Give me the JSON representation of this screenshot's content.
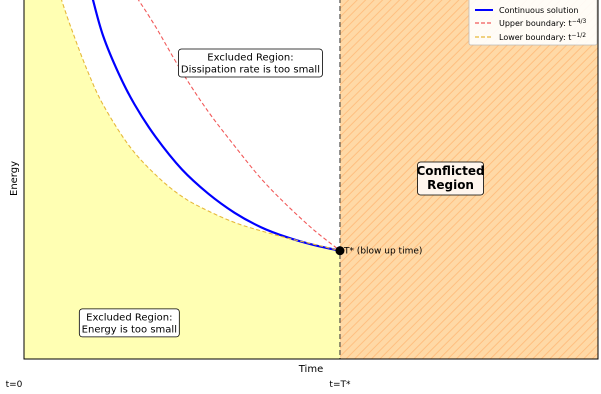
{
  "chart_data": {
    "type": "line",
    "title": "",
    "xlabel": "Time",
    "ylabel": "Energy",
    "x_ticks": [
      {
        "x": 0.0,
        "label": "t=0"
      },
      {
        "x": 0.6,
        "label": "t=T*"
      }
    ],
    "xlim": [
      0.0,
      1.09
    ],
    "ylim": [
      0.0,
      1.0
    ],
    "grid": false,
    "legend_position": "top-right",
    "series": [
      {
        "name": "Continuous solution",
        "color": "#0000ff",
        "style": "solid",
        "x": [
          0.13,
          0.15,
          0.18,
          0.21,
          0.25,
          0.3,
          0.35,
          0.4,
          0.45,
          0.5,
          0.55,
          0.6
        ],
        "y": [
          1.0,
          0.896,
          0.79,
          0.705,
          0.615,
          0.525,
          0.458,
          0.405,
          0.365,
          0.337,
          0.316,
          0.3
        ]
      },
      {
        "name": "Upper boundary: t^{-4/3}",
        "color": "#f15a5a",
        "style": "dashed",
        "x": [
          0.215,
          0.25,
          0.3,
          0.35,
          0.4,
          0.45,
          0.5,
          0.55,
          0.6
        ],
        "y": [
          1.0,
          0.92,
          0.795,
          0.685,
          0.59,
          0.5,
          0.425,
          0.358,
          0.3
        ]
      },
      {
        "name": "Lower boundary: t^{-1/2}",
        "color": "#e6b83a",
        "style": "dashed",
        "x": [
          0.07,
          0.09,
          0.12,
          0.15,
          0.2,
          0.25,
          0.3,
          0.35,
          0.4,
          0.45,
          0.5,
          0.55,
          0.6
        ],
        "y": [
          1.0,
          0.915,
          0.8,
          0.705,
          0.59,
          0.51,
          0.45,
          0.41,
          0.378,
          0.355,
          0.335,
          0.318,
          0.3
        ]
      }
    ],
    "point": {
      "x": 0.6,
      "y": 0.3,
      "label": "T* (blow up time)"
    },
    "regions": [
      {
        "name": "lower-excluded",
        "label_lines": [
          "Excluded Region:",
          "Energy is too small"
        ],
        "color": "#ffffb3",
        "label_at": [
          0.2,
          0.1
        ]
      },
      {
        "name": "upper-excluded",
        "label_lines": [
          "Excluded Region:",
          "Dissipation rate is too small"
        ],
        "label_at": [
          0.43,
          0.82
        ]
      },
      {
        "name": "conflicted",
        "label_lines": [
          "Conflicted",
          "Region"
        ],
        "color": "#ffd9a6",
        "hatch_color": "#ffbf80",
        "title_color": "#800080",
        "label_at": [
          0.81,
          0.5
        ]
      }
    ]
  },
  "legend": {
    "items": [
      {
        "main": "Continuous solution",
        "sup": ""
      },
      {
        "main": "Upper boundary: t",
        "sup": "−4/3"
      },
      {
        "main": "Lower boundary: t",
        "sup": "−1/2"
      }
    ]
  }
}
